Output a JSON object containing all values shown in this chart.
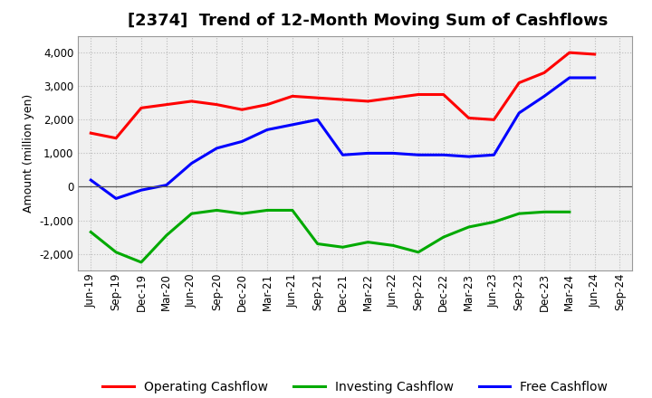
{
  "title": "[2374]  Trend of 12-Month Moving Sum of Cashflows",
  "ylabel": "Amount (million yen)",
  "x_labels": [
    "Jun-19",
    "Sep-19",
    "Dec-19",
    "Mar-20",
    "Jun-20",
    "Sep-20",
    "Dec-20",
    "Mar-21",
    "Jun-21",
    "Sep-21",
    "Dec-21",
    "Mar-22",
    "Jun-22",
    "Sep-22",
    "Dec-22",
    "Mar-23",
    "Jun-23",
    "Sep-23",
    "Dec-23",
    "Mar-24",
    "Jun-24",
    "Sep-24"
  ],
  "operating_cashflow": [
    1600,
    1450,
    2350,
    2450,
    2550,
    2450,
    2300,
    2450,
    2700,
    2650,
    2600,
    2550,
    2650,
    2750,
    2750,
    2050,
    2000,
    3100,
    3400,
    4000,
    3950,
    null
  ],
  "investing_cashflow": [
    -1350,
    -1950,
    -2250,
    -1450,
    -800,
    -700,
    -800,
    -700,
    -700,
    -1700,
    -1800,
    -1650,
    -1750,
    -1950,
    -1500,
    -1200,
    -1050,
    -800,
    -750,
    -750,
    null,
    null
  ],
  "free_cashflow": [
    200,
    -350,
    -100,
    50,
    700,
    1150,
    1350,
    1700,
    1850,
    2000,
    950,
    1000,
    1000,
    950,
    950,
    900,
    950,
    2200,
    2700,
    3250,
    3250,
    null
  ],
  "operating_color": "#ff0000",
  "investing_color": "#00aa00",
  "free_color": "#0000ff",
  "ylim": [
    -2500,
    4500
  ],
  "yticks": [
    -2000,
    -1000,
    0,
    1000,
    2000,
    3000,
    4000
  ],
  "plot_bg_color": "#f0f0f0",
  "fig_bg_color": "#ffffff",
  "grid_color": "#bbbbbb",
  "zero_line_color": "#555555",
  "line_width": 2.2,
  "title_fontsize": 13,
  "legend_fontsize": 10,
  "tick_fontsize": 8.5,
  "ylabel_fontsize": 9
}
